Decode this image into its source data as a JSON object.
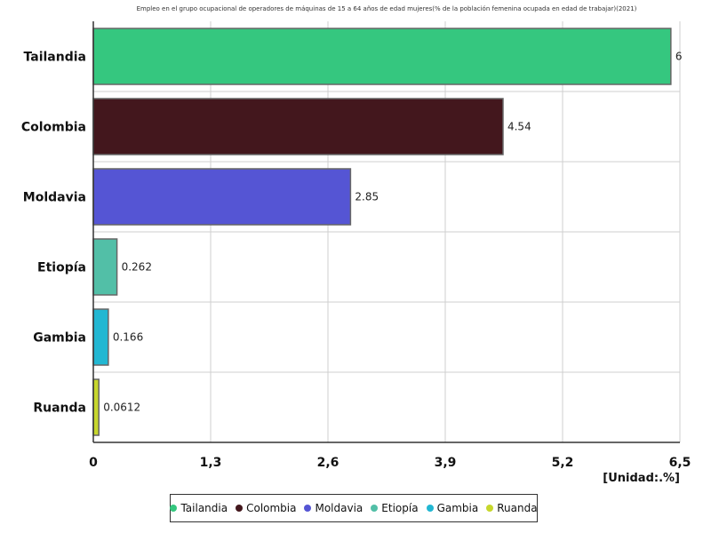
{
  "chart_data": {
    "type": "bar",
    "orientation": "horizontal",
    "title": "Empleo en el grupo ocupacional de operadores de máquinas de 15 a 64 años de edad mujeres(% de la población femenina ocupada en edad de trabajar)(2021)",
    "categories": [
      "Tailandia",
      "Colombia",
      "Moldavia",
      "Etiopía",
      "Gambia",
      "Ruanda"
    ],
    "values": [
      6.4,
      4.54,
      2.85,
      0.262,
      0.166,
      0.0612
    ],
    "value_labels": [
      "6",
      "4.54",
      "2.85",
      "0.262",
      "0.166",
      "0.0612"
    ],
    "colors": [
      "#35c77f",
      "#43171d",
      "#5555d4",
      "#52bfa7",
      "#22b7d2",
      "#c7d72c"
    ],
    "xlim": [
      0,
      6.5
    ],
    "x_ticks": [
      0,
      1.3,
      2.6,
      3.9,
      5.2,
      6.5
    ],
    "x_tick_labels": [
      "0",
      "1,3",
      "2,6",
      "3,9",
      "5,2",
      "6,5"
    ],
    "unit_label": "[Unidad:.%]",
    "grid": true,
    "legend_position": "bottom"
  }
}
